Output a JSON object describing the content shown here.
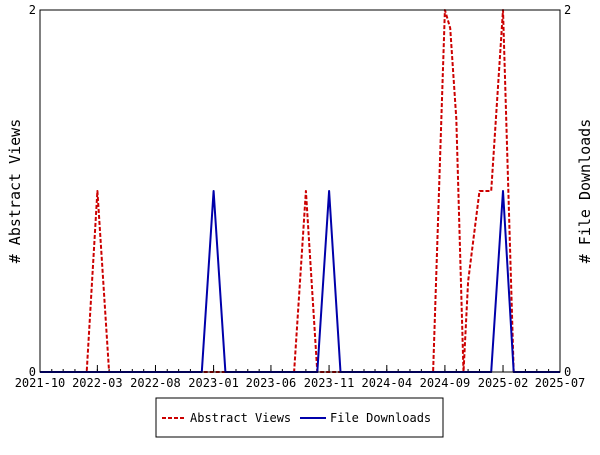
{
  "chart_data": {
    "type": "line",
    "title": "",
    "xlabel": "",
    "ylabel": "# Abstract Views",
    "ylabel_right": "# File Downloads",
    "x_ticks": [
      "2021-10",
      "2022-03",
      "2022-08",
      "2023-01",
      "2023-06",
      "2023-11",
      "2024-04",
      "2024-09",
      "2025-02",
      "2025-07"
    ],
    "y_ticks": [
      "0",
      "2"
    ],
    "y_ticks_right": [
      "0",
      "2"
    ],
    "ylim": [
      0,
      2
    ],
    "xlim": [
      "2021-10-01",
      "2025-07-01"
    ],
    "grid": false,
    "legend_position": "bottom",
    "series": [
      {
        "name": "Abstract Views",
        "color": "#cc0000",
        "style": "dashed",
        "axis": "left",
        "points": [
          [
            "2021-10-01",
            0
          ],
          [
            "2022-02-01",
            0
          ],
          [
            "2022-03-01",
            1
          ],
          [
            "2022-04-01",
            0
          ],
          [
            "2023-08-01",
            0
          ],
          [
            "2023-09-01",
            1
          ],
          [
            "2023-10-01",
            0
          ],
          [
            "2024-08-01",
            0
          ],
          [
            "2024-09-01",
            2
          ],
          [
            "2024-09-15",
            1.9
          ],
          [
            "2024-10-01",
            1.4
          ],
          [
            "2024-10-20",
            0
          ],
          [
            "2024-11-01",
            0.5
          ],
          [
            "2024-12-01",
            1
          ],
          [
            "2025-01-01",
            1
          ],
          [
            "2025-02-01",
            2
          ],
          [
            "2025-03-01",
            0
          ],
          [
            "2025-07-01",
            0
          ]
        ]
      },
      {
        "name": "File Downloads",
        "color": "#0000aa",
        "style": "solid",
        "axis": "right",
        "points": [
          [
            "2021-10-01",
            0
          ],
          [
            "2022-12-01",
            0
          ],
          [
            "2023-01-01",
            1
          ],
          [
            "2023-02-01",
            0
          ],
          [
            "2023-10-01",
            0
          ],
          [
            "2023-11-01",
            1
          ],
          [
            "2023-12-01",
            0
          ],
          [
            "2025-01-01",
            0
          ],
          [
            "2025-02-01",
            1
          ],
          [
            "2025-03-01",
            0
          ],
          [
            "2025-07-01",
            0
          ]
        ]
      }
    ]
  }
}
